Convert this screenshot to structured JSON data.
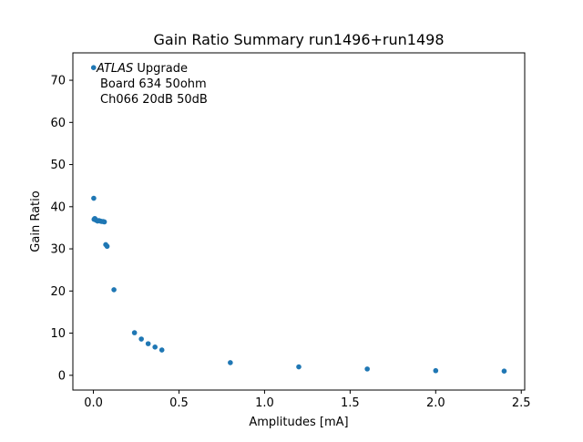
{
  "chart_data": {
    "type": "scatter",
    "title": "Gain Ratio Summary run1496+run1498",
    "xlabel": "Amplitudes [mA]",
    "ylabel": "Gain Ratio",
    "xlim": [
      -0.12,
      2.52
    ],
    "ylim": [
      -3.5,
      76.5
    ],
    "xticks": [
      0.0,
      0.5,
      1.0,
      1.5,
      2.0,
      2.5
    ],
    "xtick_labels": [
      "0.0",
      "0.5",
      "1.0",
      "1.5",
      "2.0",
      "2.5"
    ],
    "yticks": [
      0,
      10,
      20,
      30,
      40,
      50,
      60,
      70
    ],
    "ytick_labels": [
      "0",
      "10",
      "20",
      "30",
      "40",
      "50",
      "60",
      "70"
    ],
    "grid": false,
    "legend": "none",
    "marker_color": "#1f77b4",
    "annotation": {
      "line1_italic": "ATLAS",
      "line1_rest": " Upgrade",
      "line2": "Board 634 50ohm",
      "line3": "Ch066 20dB 50dB"
    },
    "series": [
      {
        "x": [
          0.001,
          0.002,
          0.004,
          0.008,
          0.012,
          0.016,
          0.024,
          0.032,
          0.04,
          0.048,
          0.056,
          0.064,
          0.072,
          0.08,
          0.12,
          0.24,
          0.28,
          0.32,
          0.36,
          0.4,
          0.8,
          1.2,
          1.6,
          2.0,
          2.4
        ],
        "y": [
          73.0,
          42.0,
          37.0,
          37.2,
          37.0,
          36.8,
          36.6,
          36.7,
          36.6,
          36.5,
          36.5,
          36.4,
          31.0,
          30.6,
          20.3,
          10.1,
          8.6,
          7.5,
          6.7,
          6.0,
          3.0,
          2.0,
          1.5,
          1.1,
          1.0
        ]
      }
    ]
  }
}
